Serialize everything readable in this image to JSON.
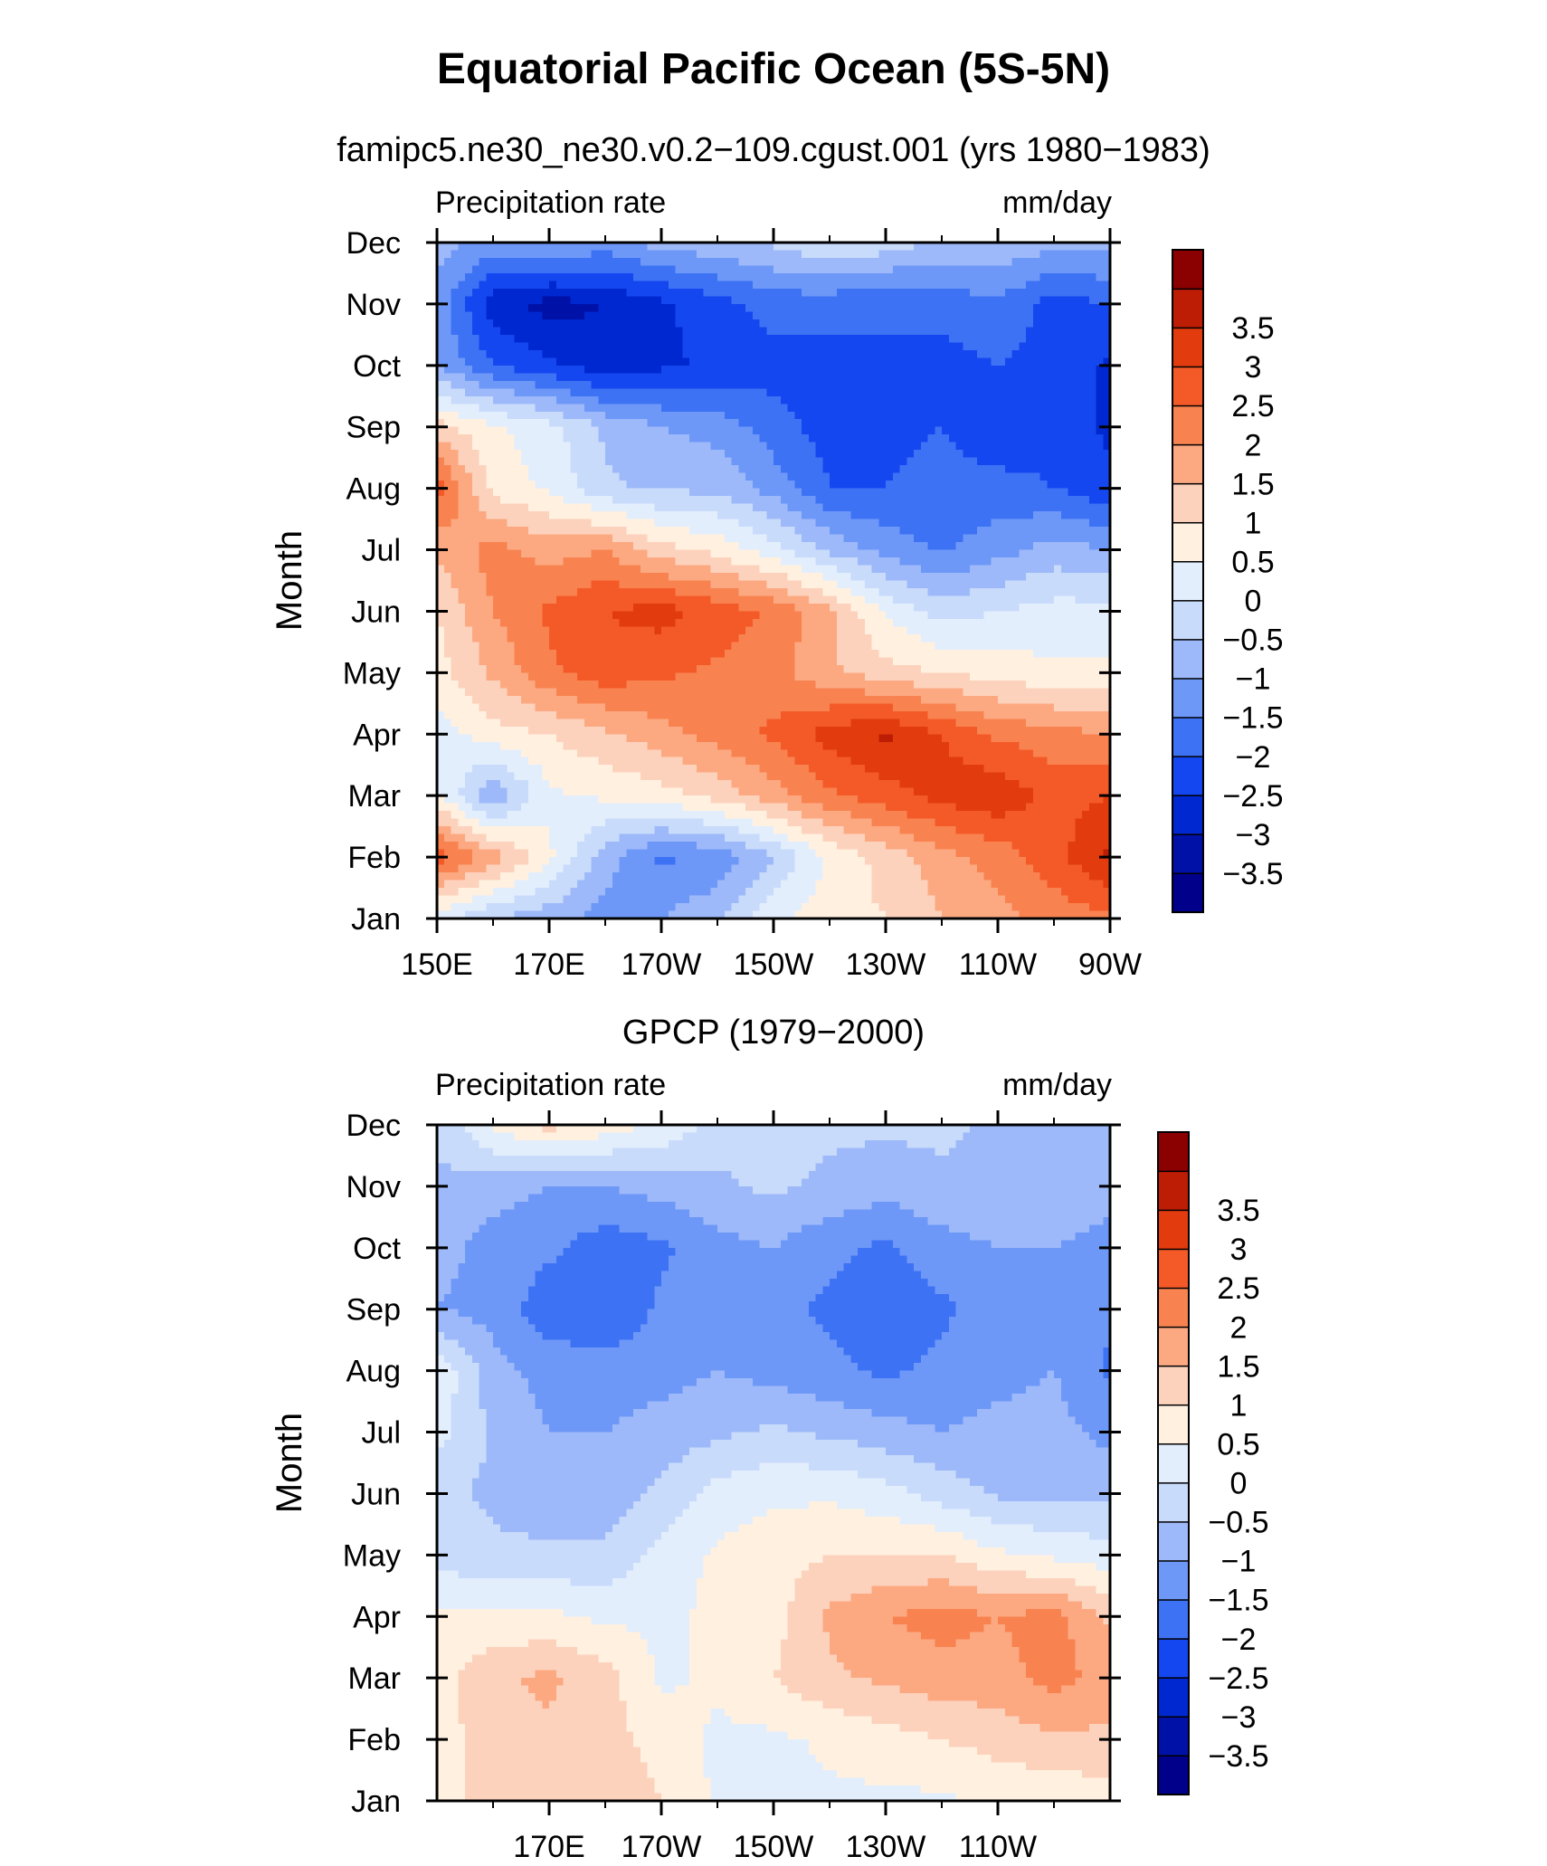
{
  "figure": {
    "title": "Equatorial Pacific Ocean (5S-5N)"
  },
  "colors": {
    "scale": [
      "#00008b",
      "#0011a8",
      "#0028d0",
      "#1547f0",
      "#3d72f5",
      "#6e98f7",
      "#9db9f9",
      "#c9dbfb",
      "#e3eefd",
      "#fff0e0",
      "#fdd2bd",
      "#fca982",
      "#f88350",
      "#f45a28",
      "#e13b0e",
      "#bd1c05",
      "#8b0000"
    ],
    "frame": "#000000"
  },
  "chart_data": [
    {
      "type": "heatmap",
      "title": "famipc5.ne30_ne30.v0.2-109.cgust.001 (yrs 1980-1983)",
      "left_label": "Precipitation rate",
      "right_label": "mm/day",
      "ylabel": "Month",
      "x_ticks": [
        "150E",
        "170E",
        "170W",
        "150W",
        "130W",
        "110W",
        "90W"
      ],
      "x_tick_positions": [
        150,
        170,
        190,
        210,
        230,
        250,
        270
      ],
      "x_range": [
        150,
        270
      ],
      "y_ticks": [
        "Jan",
        "Feb",
        "Mar",
        "Apr",
        "May",
        "Jun",
        "Jul",
        "Aug",
        "Sep",
        "Oct",
        "Nov",
        "Dec"
      ],
      "y_range": [
        1,
        12
      ],
      "levels": [
        "-3.5",
        "-3",
        "-2.5",
        "-2",
        "-1.5",
        "-1",
        "-0.5",
        "0",
        "0.5",
        "1",
        "1.5",
        "2",
        "2.5",
        "3",
        "3.5"
      ],
      "lon": [
        150,
        160,
        170,
        180,
        190,
        200,
        210,
        220,
        230,
        240,
        250,
        260,
        270
      ],
      "values": [
        [
          0.2,
          -0.5,
          -0.8,
          -1.2,
          -1.0,
          -0.6,
          0.4,
          0.8,
          1.0,
          1.5,
          1.8,
          2.2,
          2.4
        ],
        [
          2.8,
          1.8,
          0.6,
          -0.8,
          -1.6,
          -1.4,
          -0.5,
          0.6,
          1.2,
          1.8,
          2.2,
          2.8,
          3.6
        ],
        [
          0.6,
          -1.0,
          0.4,
          0.6,
          0.8,
          1.2,
          1.8,
          2.4,
          2.8,
          3.2,
          3.4,
          2.8,
          3.0
        ],
        [
          0.2,
          0.8,
          1.0,
          1.4,
          1.8,
          2.2,
          2.6,
          3.2,
          3.6,
          3.0,
          2.4,
          2.2,
          2.0
        ],
        [
          0.8,
          1.6,
          2.4,
          2.8,
          2.6,
          2.4,
          2.2,
          1.6,
          1.2,
          1.0,
          0.8,
          0.6,
          0.6
        ],
        [
          1.0,
          2.0,
          2.6,
          3.0,
          3.2,
          2.8,
          2.4,
          1.6,
          0.4,
          -0.2,
          0.0,
          0.2,
          0.2
        ],
        [
          1.6,
          2.2,
          1.8,
          2.0,
          1.2,
          0.8,
          0.2,
          -0.6,
          -1.2,
          -1.6,
          -1.2,
          -0.8,
          -1.0
        ],
        [
          2.8,
          0.8,
          0.4,
          -0.4,
          -0.6,
          -0.6,
          -1.2,
          -2.0,
          -2.0,
          -1.8,
          -1.8,
          -2.0,
          -2.4
        ],
        [
          1.2,
          0.6,
          0.2,
          -0.6,
          -1.0,
          -1.2,
          -1.8,
          -2.2,
          -2.2,
          -2.0,
          -2.4,
          -2.2,
          -2.6
        ],
        [
          -1.0,
          -2.0,
          -2.4,
          -2.8,
          -2.6,
          -2.4,
          -2.2,
          -2.2,
          -2.0,
          -2.2,
          -2.0,
          -2.2,
          -2.6
        ],
        [
          -1.2,
          -2.8,
          -3.2,
          -3.0,
          -2.6,
          -2.2,
          -1.8,
          -1.8,
          -2.0,
          -1.8,
          -1.6,
          -2.2,
          -2.0
        ],
        [
          -0.8,
          -1.2,
          -1.0,
          -1.2,
          -0.8,
          -0.6,
          -0.4,
          0.0,
          -0.2,
          -0.6,
          -0.6,
          -0.8,
          -0.8
        ]
      ]
    },
    {
      "type": "heatmap",
      "title": "GPCP (1979-2000)",
      "left_label": "Precipitation rate",
      "right_label": "mm/day",
      "ylabel": "Month",
      "x_ticks": [
        "170E",
        "170W",
        "150W",
        "130W",
        "110W"
      ],
      "x_tick_positions": [
        170,
        190,
        210,
        230,
        250
      ],
      "x_range": [
        150,
        270
      ],
      "y_ticks": [
        "Jan",
        "Feb",
        "Mar",
        "Apr",
        "May",
        "Jun",
        "Jul",
        "Aug",
        "Sep",
        "Oct",
        "Nov",
        "Dec"
      ],
      "y_range": [
        1,
        12
      ],
      "levels": [
        "-3.5",
        "-3",
        "-2.5",
        "-2",
        "-1.5",
        "-1",
        "-0.5",
        "0",
        "0.5",
        "1",
        "1.5",
        "2",
        "2.5",
        "3",
        "3.5"
      ],
      "lon": [
        150,
        160,
        170,
        180,
        190,
        200,
        210,
        220,
        230,
        240,
        250,
        260,
        270
      ],
      "values": [
        [
          0.8,
          1.2,
          1.2,
          1.4,
          1.0,
          0.4,
          0.2,
          0.4,
          0.4,
          0.4,
          0.6,
          0.6,
          0.8
        ],
        [
          0.8,
          1.2,
          1.4,
          1.2,
          0.8,
          0.4,
          0.4,
          0.6,
          0.8,
          1.0,
          1.2,
          1.4,
          1.4
        ],
        [
          0.8,
          1.4,
          1.6,
          1.2,
          0.4,
          0.6,
          1.0,
          1.4,
          1.6,
          1.8,
          1.8,
          2.2,
          1.8
        ],
        [
          0.6,
          0.6,
          0.6,
          0.4,
          0.4,
          0.6,
          0.8,
          1.6,
          2.0,
          2.2,
          2.0,
          2.2,
          1.4
        ],
        [
          -0.2,
          -0.4,
          -0.4,
          -0.4,
          0.2,
          0.6,
          0.8,
          1.0,
          1.0,
          1.0,
          0.6,
          0.4,
          0.2
        ],
        [
          -0.4,
          -0.6,
          -0.8,
          -0.8,
          -0.4,
          0.2,
          0.4,
          0.4,
          0.2,
          -0.2,
          -0.6,
          -0.6,
          -0.6
        ],
        [
          0.2,
          -0.6,
          -1.0,
          -1.0,
          -0.8,
          -0.6,
          -0.4,
          -0.6,
          -0.8,
          -1.0,
          -0.8,
          -0.8,
          -1.2
        ],
        [
          0.4,
          -0.8,
          -1.2,
          -1.2,
          -1.2,
          -1.0,
          -1.2,
          -1.4,
          -1.6,
          -1.4,
          -1.2,
          -1.0,
          -1.6
        ],
        [
          -1.0,
          -1.2,
          -1.8,
          -2.0,
          -1.4,
          -1.2,
          -1.4,
          -1.6,
          -1.8,
          -1.6,
          -1.2,
          -1.2,
          -1.4
        ],
        [
          -0.8,
          -1.2,
          -1.4,
          -1.8,
          -1.6,
          -1.2,
          -1.0,
          -1.4,
          -1.6,
          -1.2,
          -1.0,
          -1.0,
          -1.2
        ],
        [
          -0.6,
          -0.8,
          -1.0,
          -1.0,
          -0.8,
          -0.6,
          -0.4,
          -0.6,
          -0.8,
          -0.6,
          -0.6,
          -0.6,
          -0.8
        ],
        [
          -0.4,
          0.6,
          1.2,
          0.8,
          0.4,
          -0.2,
          -0.4,
          -0.4,
          -0.4,
          -0.4,
          -0.6,
          -0.6,
          -0.6
        ]
      ]
    }
  ]
}
